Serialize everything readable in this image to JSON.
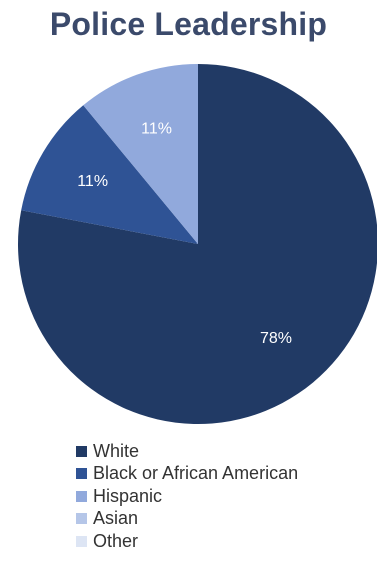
{
  "chart_data": {
    "type": "pie",
    "title": "Police Leadership",
    "categories": [
      "White",
      "Black or African American",
      "Hispanic",
      "Asian",
      "Other"
    ],
    "values": [
      78,
      11,
      11,
      0,
      0
    ],
    "value_labels": [
      "78%",
      "11%",
      "11%",
      "",
      ""
    ],
    "colors": [
      "#213a65",
      "#2f5395",
      "#91a9dc",
      "#b5c6e8",
      "#dde5f4"
    ],
    "legend_position": "bottom",
    "start_angle_deg": 0,
    "direction": "clockwise"
  }
}
